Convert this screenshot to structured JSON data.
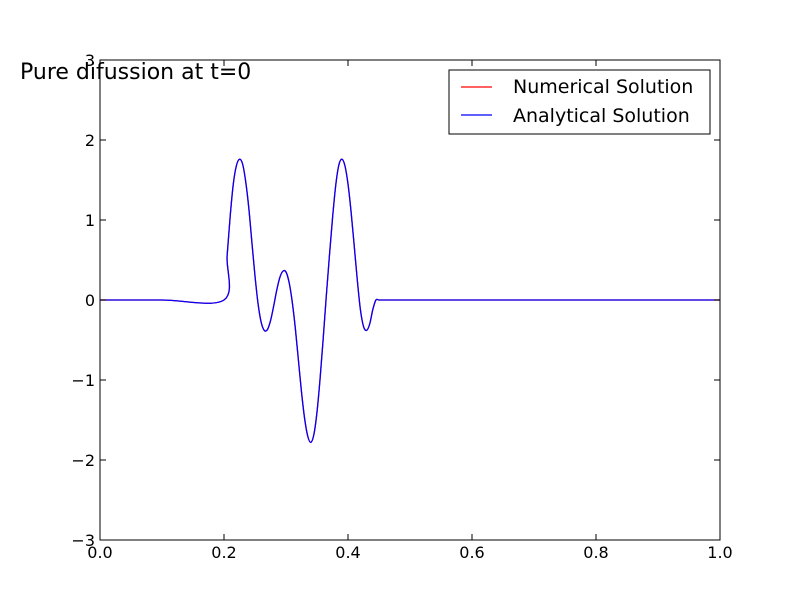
{
  "chart_data": {
    "type": "line",
    "title": "Pure difussion at t=0",
    "xlabel": "",
    "ylabel": "",
    "xlim": [
      0.0,
      1.0
    ],
    "ylim": [
      -3,
      3
    ],
    "x_ticks": [
      "0.0",
      "0.2",
      "0.4",
      "0.6",
      "0.8",
      "1.0"
    ],
    "y_ticks": [
      "−3",
      "−2",
      "−1",
      "0",
      "1",
      "2",
      "3"
    ],
    "grid": false,
    "legend_position": "top-right",
    "series": [
      {
        "name": "Numerical Solution",
        "color": "#ff0000",
        "x": [
          0.0,
          0.1,
          0.2,
          0.205,
          0.21,
          0.215,
          0.22,
          0.225,
          0.23,
          0.235,
          0.24,
          0.245,
          0.25,
          0.255,
          0.26,
          0.265,
          0.27,
          0.275,
          0.28,
          0.285,
          0.29,
          0.295,
          0.3,
          0.305,
          0.31,
          0.315,
          0.32,
          0.325,
          0.33,
          0.335,
          0.34,
          0.345,
          0.35,
          0.355,
          0.36,
          0.365,
          0.37,
          0.375,
          0.38,
          0.385,
          0.39,
          0.395,
          0.4,
          0.405,
          0.41,
          0.415,
          0.42,
          0.425,
          0.43,
          0.435,
          0.44,
          0.445,
          0.45,
          0.455,
          0.46,
          0.465,
          0.47,
          0.475,
          0.48,
          0.485,
          0.49,
          0.495,
          0.5,
          0.6,
          0.7,
          0.8,
          0.9,
          1.0
        ],
        "y": [
          0,
          0,
          0,
          0.55,
          1.05,
          1.45,
          1.68,
          1.76,
          1.7,
          1.48,
          1.15,
          0.72,
          0.3,
          -0.05,
          -0.28,
          -0.38,
          -0.37,
          -0.26,
          -0.08,
          0.12,
          0.28,
          0.36,
          0.35,
          0.22,
          -0.02,
          -0.35,
          -0.75,
          -1.15,
          -1.48,
          -1.7,
          -1.78,
          -1.68,
          -1.4,
          -0.98,
          -0.48,
          0.05,
          0.55,
          1.02,
          1.42,
          1.68,
          1.76,
          1.68,
          1.45,
          1.1,
          0.68,
          0.25,
          -0.12,
          -0.33,
          -0.38,
          -0.3,
          -0.12,
          0.0,
          0,
          0,
          0,
          0,
          0,
          0,
          0,
          0,
          0,
          0,
          0,
          0,
          0,
          0,
          0,
          0
        ]
      },
      {
        "name": "Analytical Solution",
        "color": "#0000ff",
        "x": [
          0.0,
          0.1,
          0.2,
          0.205,
          0.21,
          0.215,
          0.22,
          0.225,
          0.23,
          0.235,
          0.24,
          0.245,
          0.25,
          0.255,
          0.26,
          0.265,
          0.27,
          0.275,
          0.28,
          0.285,
          0.29,
          0.295,
          0.3,
          0.305,
          0.31,
          0.315,
          0.32,
          0.325,
          0.33,
          0.335,
          0.34,
          0.345,
          0.35,
          0.355,
          0.36,
          0.365,
          0.37,
          0.375,
          0.38,
          0.385,
          0.39,
          0.395,
          0.4,
          0.405,
          0.41,
          0.415,
          0.42,
          0.425,
          0.43,
          0.435,
          0.44,
          0.445,
          0.45,
          0.455,
          0.46,
          0.465,
          0.47,
          0.475,
          0.48,
          0.485,
          0.49,
          0.495,
          0.5,
          0.6,
          0.7,
          0.8,
          0.9,
          1.0
        ],
        "y": [
          0,
          0,
          0,
          0.55,
          1.05,
          1.45,
          1.68,
          1.76,
          1.7,
          1.48,
          1.15,
          0.72,
          0.3,
          -0.05,
          -0.28,
          -0.38,
          -0.37,
          -0.26,
          -0.08,
          0.12,
          0.28,
          0.36,
          0.35,
          0.22,
          -0.02,
          -0.35,
          -0.75,
          -1.15,
          -1.48,
          -1.7,
          -1.78,
          -1.68,
          -1.4,
          -0.98,
          -0.48,
          0.05,
          0.55,
          1.02,
          1.42,
          1.68,
          1.76,
          1.68,
          1.45,
          1.1,
          0.68,
          0.25,
          -0.12,
          -0.33,
          -0.38,
          -0.3,
          -0.12,
          0.0,
          0,
          0,
          0,
          0,
          0,
          0,
          0,
          0,
          0,
          0,
          0,
          0,
          0,
          0,
          0,
          0
        ]
      }
    ]
  }
}
